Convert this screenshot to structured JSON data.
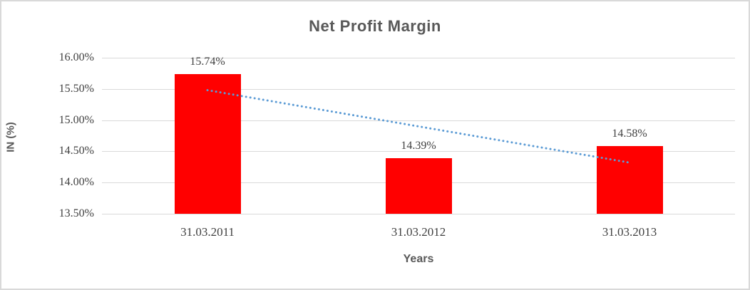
{
  "chart_data": {
    "type": "bar",
    "title": "Net Profit Margin",
    "xlabel": "Years",
    "ylabel": "IN (%)",
    "categories": [
      "31.03.2011",
      "31.03.2012",
      "31.03.2013"
    ],
    "values": [
      15.74,
      14.39,
      14.58
    ],
    "data_labels": [
      "15.74%",
      "14.39%",
      "14.58%"
    ],
    "ylim": [
      13.5,
      16.0
    ],
    "yticks": [
      {
        "value": 16.0,
        "label": "16.00%"
      },
      {
        "value": 15.5,
        "label": "15.50%"
      },
      {
        "value": 15.0,
        "label": "15.00%"
      },
      {
        "value": 14.5,
        "label": "14.50%"
      },
      {
        "value": 14.0,
        "label": "14.00%"
      },
      {
        "value": 13.5,
        "label": "13.50%"
      }
    ],
    "grid": true,
    "legend": false,
    "trendline": {
      "type": "linear",
      "style": "dotted",
      "start_value": 15.48,
      "end_value": 14.32
    }
  },
  "colors": {
    "bar": "#FF0000",
    "trendline": "#5B9BD5",
    "gridline": "#D9D9D9",
    "title_text": "#595959",
    "axis_title_text": "#595959",
    "tick_text": "#404040",
    "chart_border": "#D9D9D9"
  }
}
